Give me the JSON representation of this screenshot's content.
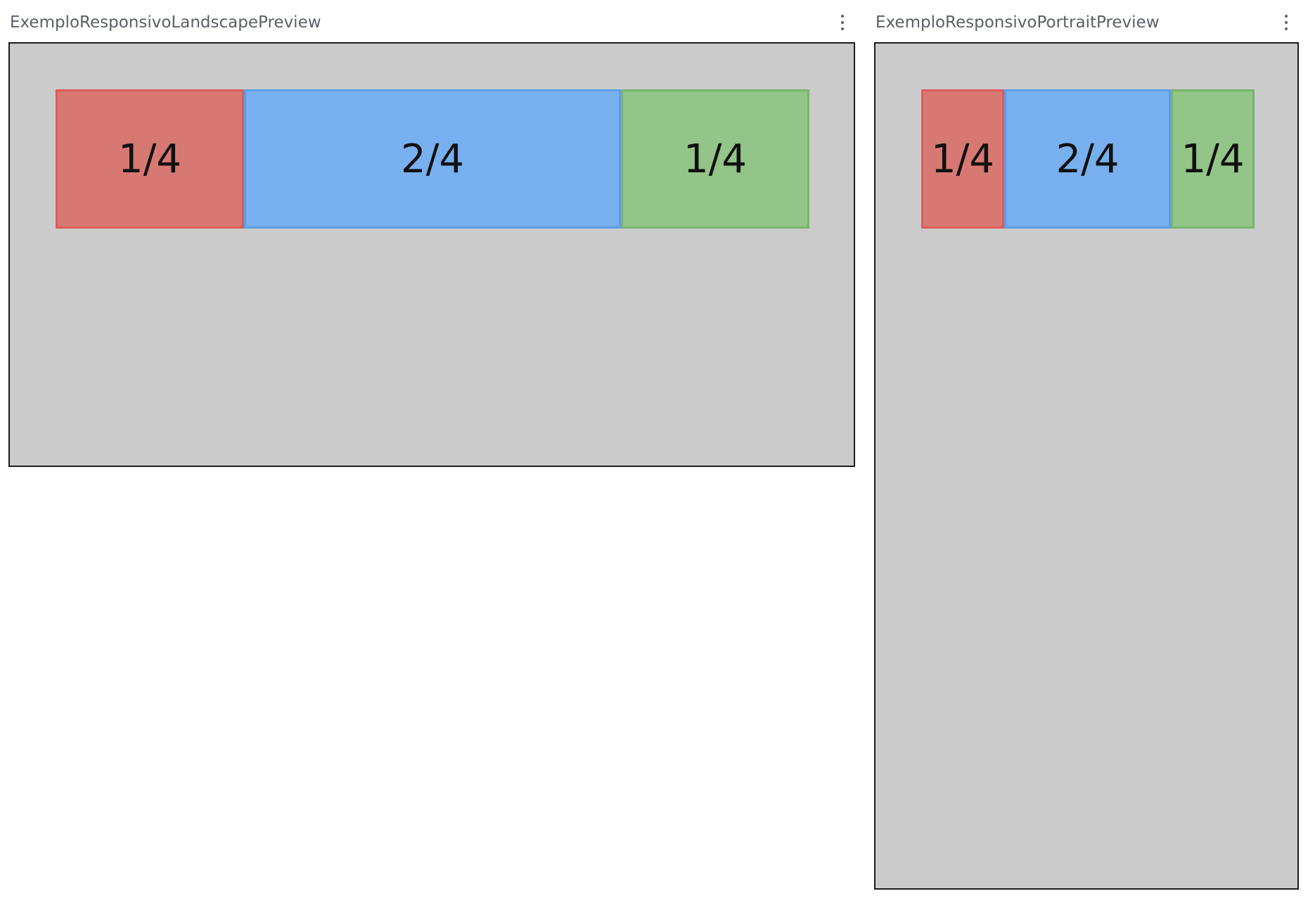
{
  "landscape": {
    "title": "ExemploResponsivoLandscapePreview",
    "menu_icon": "more-vertical-icon",
    "cells": [
      {
        "label": "1/4",
        "color": "#d77873"
      },
      {
        "label": "2/4",
        "color": "#78b0ef"
      },
      {
        "label": "1/4",
        "color": "#93c488"
      }
    ]
  },
  "portrait": {
    "title": "ExemploResponsivoPortraitPreview",
    "menu_icon": "more-vertical-icon",
    "cells": [
      {
        "label": "1/4",
        "color": "#d77873"
      },
      {
        "label": "2/4",
        "color": "#78b0ef"
      },
      {
        "label": "1/4",
        "color": "#93c488"
      }
    ]
  },
  "colors": {
    "preview_background": "#cbcbcb",
    "title_text": "#5b6066"
  }
}
